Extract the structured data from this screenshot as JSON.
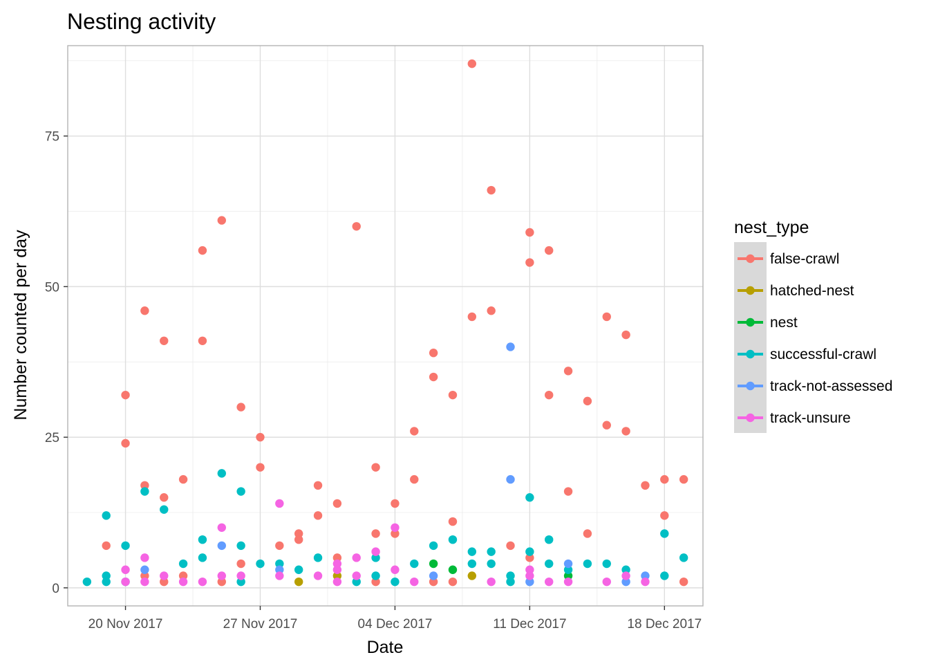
{
  "chart_data": {
    "type": "scatter",
    "title": "Nesting activity",
    "xlabel": "Date",
    "ylabel": "Number counted per day",
    "x_type": "date",
    "xlim": [
      "2017-11-17",
      "2017-12-20"
    ],
    "ylim": [
      -3,
      90
    ],
    "x_ticks": [
      "2017-11-20",
      "2017-11-27",
      "2017-12-04",
      "2017-12-11",
      "2017-12-18"
    ],
    "x_tick_labels": [
      "20 Nov 2017",
      "27 Nov 2017",
      "04 Dec 2017",
      "11 Dec 2017",
      "18 Dec 2017"
    ],
    "y_ticks": [
      0,
      25,
      50,
      75
    ],
    "y_tick_labels": [
      "0",
      "25",
      "50",
      "75"
    ],
    "grid": true,
    "legend": {
      "title": "nest_type",
      "position": "right"
    },
    "series": [
      {
        "name": "false-crawl",
        "color": "#F8766D",
        "points": [
          [
            "2017-11-19",
            7
          ],
          [
            "2017-11-20",
            32
          ],
          [
            "2017-11-20",
            24
          ],
          [
            "2017-11-21",
            46
          ],
          [
            "2017-11-21",
            17
          ],
          [
            "2017-11-21",
            2
          ],
          [
            "2017-11-22",
            41
          ],
          [
            "2017-11-22",
            15
          ],
          [
            "2017-11-22",
            1
          ],
          [
            "2017-11-23",
            18
          ],
          [
            "2017-11-23",
            2
          ],
          [
            "2017-11-24",
            56
          ],
          [
            "2017-11-24",
            41
          ],
          [
            "2017-11-25",
            61
          ],
          [
            "2017-11-25",
            1
          ],
          [
            "2017-11-26",
            30
          ],
          [
            "2017-11-26",
            4
          ],
          [
            "2017-11-27",
            25
          ],
          [
            "2017-11-27",
            20
          ],
          [
            "2017-11-28",
            7
          ],
          [
            "2017-11-29",
            9
          ],
          [
            "2017-11-29",
            8
          ],
          [
            "2017-11-30",
            17
          ],
          [
            "2017-11-30",
            12
          ],
          [
            "2017-12-01",
            14
          ],
          [
            "2017-12-01",
            5
          ],
          [
            "2017-12-02",
            60
          ],
          [
            "2017-12-03",
            20
          ],
          [
            "2017-12-03",
            9
          ],
          [
            "2017-12-03",
            1
          ],
          [
            "2017-12-04",
            14
          ],
          [
            "2017-12-04",
            9
          ],
          [
            "2017-12-05",
            26
          ],
          [
            "2017-12-05",
            18
          ],
          [
            "2017-12-06",
            39
          ],
          [
            "2017-12-06",
            35
          ],
          [
            "2017-12-06",
            1
          ],
          [
            "2017-12-07",
            32
          ],
          [
            "2017-12-07",
            11
          ],
          [
            "2017-12-07",
            1
          ],
          [
            "2017-12-08",
            87
          ],
          [
            "2017-12-08",
            45
          ],
          [
            "2017-12-09",
            66
          ],
          [
            "2017-12-09",
            46
          ],
          [
            "2017-12-10",
            7
          ],
          [
            "2017-12-11",
            59
          ],
          [
            "2017-12-11",
            54
          ],
          [
            "2017-12-11",
            5
          ],
          [
            "2017-12-12",
            56
          ],
          [
            "2017-12-12",
            32
          ],
          [
            "2017-12-13",
            36
          ],
          [
            "2017-12-13",
            16
          ],
          [
            "2017-12-14",
            31
          ],
          [
            "2017-12-14",
            9
          ],
          [
            "2017-12-15",
            45
          ],
          [
            "2017-12-15",
            27
          ],
          [
            "2017-12-16",
            42
          ],
          [
            "2017-12-16",
            26
          ],
          [
            "2017-12-17",
            17
          ],
          [
            "2017-12-18",
            18
          ],
          [
            "2017-12-18",
            12
          ],
          [
            "2017-12-19",
            18
          ],
          [
            "2017-12-19",
            1
          ]
        ]
      },
      {
        "name": "hatched-nest",
        "color": "#B79F00",
        "points": [
          [
            "2017-11-29",
            1
          ],
          [
            "2017-12-01",
            2
          ],
          [
            "2017-12-08",
            2
          ]
        ]
      },
      {
        "name": "nest",
        "color": "#00BA38",
        "points": [
          [
            "2017-12-06",
            4
          ],
          [
            "2017-12-07",
            3
          ],
          [
            "2017-12-13",
            2
          ]
        ]
      },
      {
        "name": "successful-crawl",
        "color": "#00BFC4",
        "points": [
          [
            "2017-11-18",
            1
          ],
          [
            "2017-11-19",
            12
          ],
          [
            "2017-11-19",
            2
          ],
          [
            "2017-11-19",
            1
          ],
          [
            "2017-11-20",
            7
          ],
          [
            "2017-11-20",
            1
          ],
          [
            "2017-11-21",
            16
          ],
          [
            "2017-11-22",
            13
          ],
          [
            "2017-11-23",
            4
          ],
          [
            "2017-11-24",
            8
          ],
          [
            "2017-11-24",
            5
          ],
          [
            "2017-11-25",
            19
          ],
          [
            "2017-11-26",
            16
          ],
          [
            "2017-11-26",
            7
          ],
          [
            "2017-11-26",
            1
          ],
          [
            "2017-11-27",
            4
          ],
          [
            "2017-11-28",
            4
          ],
          [
            "2017-11-29",
            3
          ],
          [
            "2017-11-30",
            5
          ],
          [
            "2017-12-02",
            1
          ],
          [
            "2017-12-03",
            5
          ],
          [
            "2017-12-03",
            2
          ],
          [
            "2017-12-04",
            1
          ],
          [
            "2017-12-05",
            4
          ],
          [
            "2017-12-06",
            7
          ],
          [
            "2017-12-07",
            8
          ],
          [
            "2017-12-08",
            6
          ],
          [
            "2017-12-08",
            4
          ],
          [
            "2017-12-09",
            6
          ],
          [
            "2017-12-09",
            4
          ],
          [
            "2017-12-10",
            2
          ],
          [
            "2017-12-10",
            1
          ],
          [
            "2017-12-11",
            15
          ],
          [
            "2017-12-11",
            6
          ],
          [
            "2017-12-12",
            8
          ],
          [
            "2017-12-12",
            4
          ],
          [
            "2017-12-13",
            3
          ],
          [
            "2017-12-14",
            4
          ],
          [
            "2017-12-15",
            4
          ],
          [
            "2017-12-16",
            3
          ],
          [
            "2017-12-18",
            9
          ],
          [
            "2017-12-18",
            2
          ],
          [
            "2017-12-19",
            5
          ]
        ]
      },
      {
        "name": "track-not-assessed",
        "color": "#619CFF",
        "points": [
          [
            "2017-11-21",
            3
          ],
          [
            "2017-11-25",
            7
          ],
          [
            "2017-11-28",
            3
          ],
          [
            "2017-12-06",
            2
          ],
          [
            "2017-12-10",
            40
          ],
          [
            "2017-12-10",
            18
          ],
          [
            "2017-12-11",
            1
          ],
          [
            "2017-12-13",
            4
          ],
          [
            "2017-12-16",
            1
          ],
          [
            "2017-12-17",
            2
          ]
        ]
      },
      {
        "name": "track-unsure",
        "color": "#F564E3",
        "points": [
          [
            "2017-11-20",
            3
          ],
          [
            "2017-11-20",
            1
          ],
          [
            "2017-11-21",
            5
          ],
          [
            "2017-11-21",
            1
          ],
          [
            "2017-11-22",
            2
          ],
          [
            "2017-11-23",
            1
          ],
          [
            "2017-11-24",
            1
          ],
          [
            "2017-11-25",
            10
          ],
          [
            "2017-11-25",
            2
          ],
          [
            "2017-11-26",
            2
          ],
          [
            "2017-11-28",
            14
          ],
          [
            "2017-11-28",
            2
          ],
          [
            "2017-11-30",
            2
          ],
          [
            "2017-12-01",
            4
          ],
          [
            "2017-12-01",
            3
          ],
          [
            "2017-12-01",
            1
          ],
          [
            "2017-12-02",
            5
          ],
          [
            "2017-12-02",
            2
          ],
          [
            "2017-12-03",
            6
          ],
          [
            "2017-12-04",
            10
          ],
          [
            "2017-12-04",
            3
          ],
          [
            "2017-12-05",
            1
          ],
          [
            "2017-12-09",
            1
          ],
          [
            "2017-12-11",
            3
          ],
          [
            "2017-12-11",
            2
          ],
          [
            "2017-12-12",
            1
          ],
          [
            "2017-12-13",
            1
          ],
          [
            "2017-12-15",
            1
          ],
          [
            "2017-12-16",
            2
          ],
          [
            "2017-12-17",
            1
          ]
        ]
      }
    ]
  }
}
